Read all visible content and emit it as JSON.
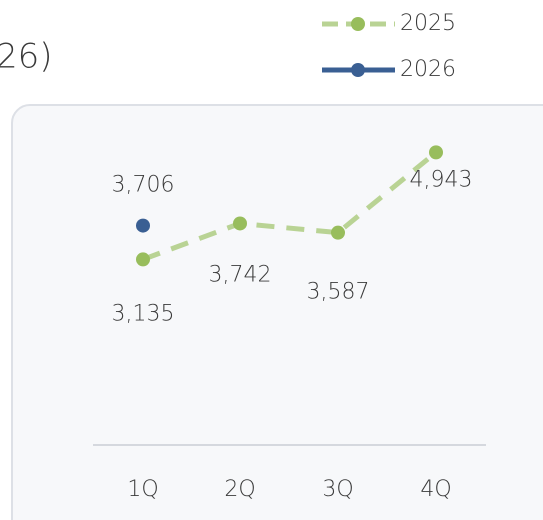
{
  "chart_data": {
    "type": "line",
    "title": "26)",
    "categories": [
      "1Q",
      "2Q",
      "3Q",
      "4Q"
    ],
    "series": [
      {
        "name": "2025",
        "color": "#b9d394",
        "marker_color": "#98bd5c",
        "dashed": true,
        "values": [
          3135,
          3742,
          3587,
          4943
        ],
        "value_labels": [
          "3,135",
          "3,742",
          "3,587",
          "4,943"
        ]
      },
      {
        "name": "2026",
        "color": "#3a5f93",
        "marker_color": "#3a5f93",
        "dashed": false,
        "values": [
          3706,
          null,
          null,
          null
        ],
        "value_labels": [
          "3,706",
          null,
          null,
          null
        ]
      }
    ],
    "ylim": [
      0,
      5000
    ]
  }
}
